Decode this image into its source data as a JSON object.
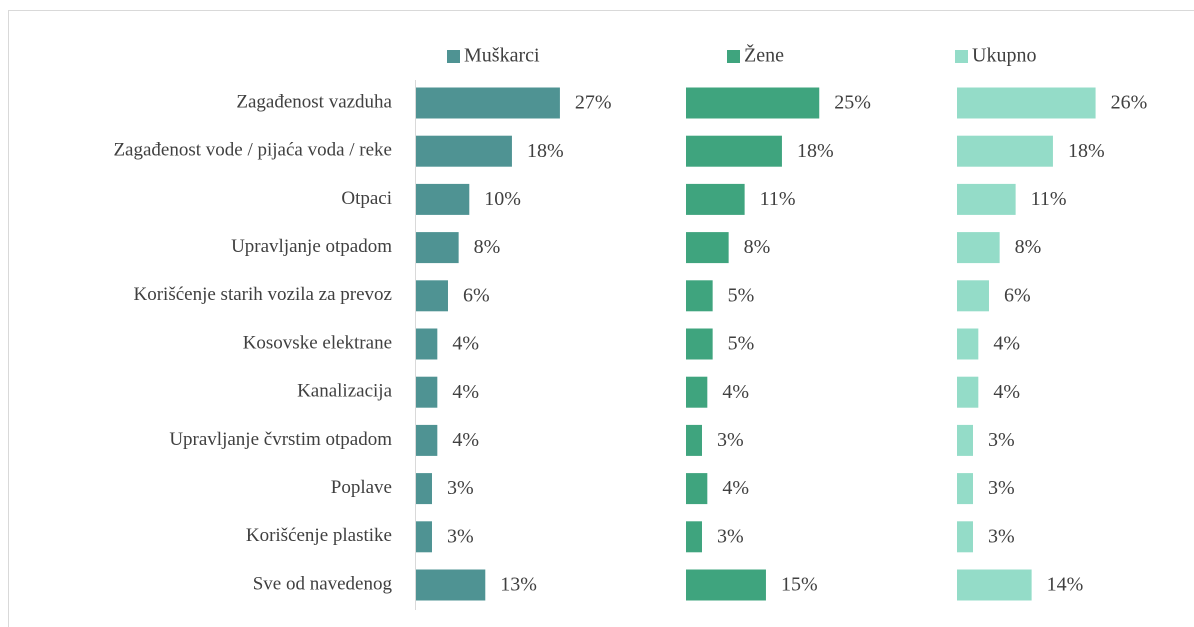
{
  "chart_data": {
    "type": "bar",
    "orientation": "horizontal",
    "categories": [
      "Zagađenost vazduha",
      "Zagađenost vode / pijaća voda / reke",
      "Otpaci",
      "Upravljanje otpadom",
      "Korišćenje starih vozila za prevoz",
      "Kosovske elektrane",
      "Kanalizacija",
      "Upravljanje čvrstim otpadom",
      "Poplave",
      "Korišćenje plastike",
      "Sve od navedenog"
    ],
    "series": [
      {
        "name": "Muškarci",
        "color": "#4f9393",
        "values": [
          27,
          18,
          10,
          8,
          6,
          4,
          4,
          4,
          3,
          3,
          13
        ],
        "value_labels": [
          "27%",
          "18%",
          "10%",
          "8%",
          "6%",
          "4%",
          "4%",
          "4%",
          "3%",
          "3%",
          "13%"
        ]
      },
      {
        "name": "Žene",
        "color": "#3fa47e",
        "values": [
          25,
          18,
          11,
          8,
          5,
          5,
          4,
          3,
          4,
          3,
          15
        ],
        "value_labels": [
          "25%",
          "18%",
          "11%",
          "8%",
          "5%",
          "5%",
          "4%",
          "3%",
          "4%",
          "3%",
          "15%"
        ]
      },
      {
        "name": "Ukupno",
        "color": "#94dcc8",
        "values": [
          26,
          18,
          11,
          8,
          6,
          4,
          4,
          3,
          3,
          3,
          14
        ],
        "value_labels": [
          "26%",
          "18%",
          "11%",
          "8%",
          "6%",
          "4%",
          "4%",
          "3%",
          "3%",
          "3%",
          "14%"
        ]
      }
    ]
  }
}
